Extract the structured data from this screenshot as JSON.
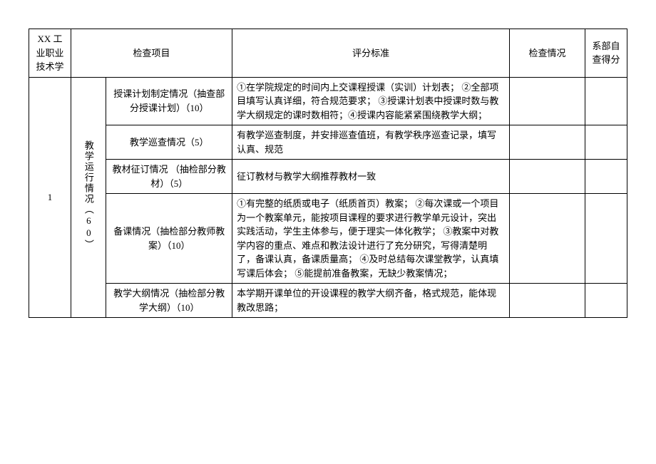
{
  "header": {
    "col1": "XX 工业职业技术学",
    "col2": "检查项目",
    "col3": "评分标准",
    "col4": "检查情况",
    "col5": "系部自查得分"
  },
  "group": {
    "index": "1",
    "category": "教学运行情况（60）"
  },
  "rows": [
    {
      "item": "授课计划制定情况（抽查部分授课计划）（10）",
      "criteria": "①在学院规定的时间内上交课程授课（实训）计划表；\n②全部项目填写认真详细，符合规范要求；\n③授课计划表中授课时数与教学大纲规定的课时数相符；④授课内容能紧紧围绕教学大纲；"
    },
    {
      "item": "教学巡查情况（5）",
      "criteria": "有教学巡查制度，并安排巡查值班，有教学秩序巡查记录，填写认真、规范"
    },
    {
      "item": "教材征订情况\n（抽检部分教材）（5）",
      "criteria": "征订教材与教学大纲推荐教材一致"
    },
    {
      "item": "备课情况（抽检部分教师教案）（10）",
      "criteria": "①有完整的纸质或电子（纸质首页）教案；\n②每次课或一个项目为一个教案单元，能按项目课程的要求进行教学单元设计，突出实践活动，学生主体参与，便于理实一体化教学；\n③教案中对教学内容的重点、难点和教法设计进行了充分研究，写得清楚明了，备课认真，备课质量高；\n④及时总结每次课堂教学，认真填写课后体会；\n⑤能提前准备教案，无缺少教案情况；"
    },
    {
      "item": "教学大纲情况（抽检部分教学大纲）（10）",
      "criteria": "本学期开课单位的开设课程的教学大纲齐备，格式规范，能体现教改思路；"
    }
  ]
}
